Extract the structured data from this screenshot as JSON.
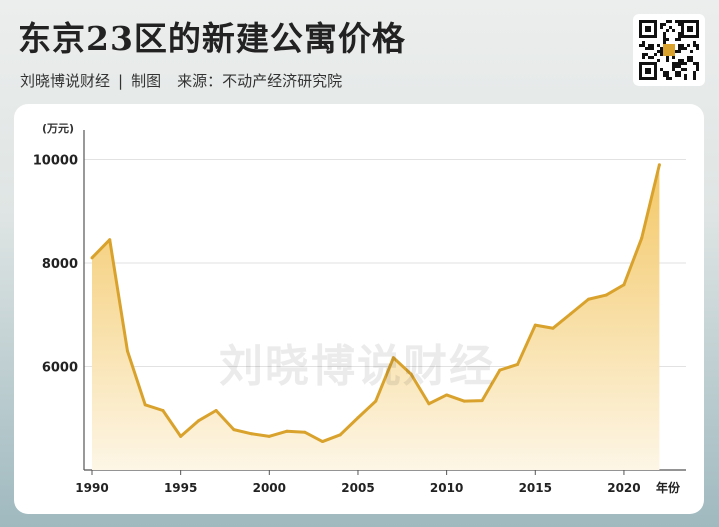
{
  "header": {
    "title": "东京23区的新建公寓价格",
    "author": "刘晓博说财经",
    "separator": "|",
    "made": "制图",
    "source": "来源：不动产经济研究院",
    "qr_icon": "qr-code-icon"
  },
  "watermark": "刘晓博说财经",
  "colors": {
    "line": "#d9a22c",
    "fill_top": "#f3c55f",
    "fill_bottom": "#fdf6e6"
  },
  "chart_data": {
    "type": "area",
    "unit_label": "(万元)",
    "xlabel": "年份",
    "x": [
      1990,
      1991,
      1992,
      1993,
      1994,
      1995,
      1996,
      1997,
      1998,
      1999,
      2000,
      2001,
      2002,
      2003,
      2004,
      2005,
      2006,
      2007,
      2008,
      2009,
      2010,
      2011,
      2012,
      2013,
      2014,
      2015,
      2016,
      2017,
      2018,
      2019,
      2020,
      2021,
      2022
    ],
    "series": [
      {
        "values": [
          8100,
          8450,
          6300,
          5260,
          5150,
          4650,
          4950,
          5150,
          4780,
          4700,
          4650,
          4750,
          4730,
          4550,
          4680,
          5010,
          5330,
          6170,
          5850,
          5280,
          5450,
          5330,
          5340,
          5930,
          6040,
          6800,
          6740,
          7020,
          7300,
          7380,
          7580,
          8480,
          9900
        ]
      }
    ],
    "y_ticks": [
      6000,
      8000,
      10000
    ],
    "x_ticks": [
      1990,
      1995,
      2000,
      2005,
      2010,
      2015,
      2020
    ],
    "xlim": [
      1990,
      2023.5
    ],
    "ylim": [
      4000,
      10300
    ],
    "grid": true
  }
}
